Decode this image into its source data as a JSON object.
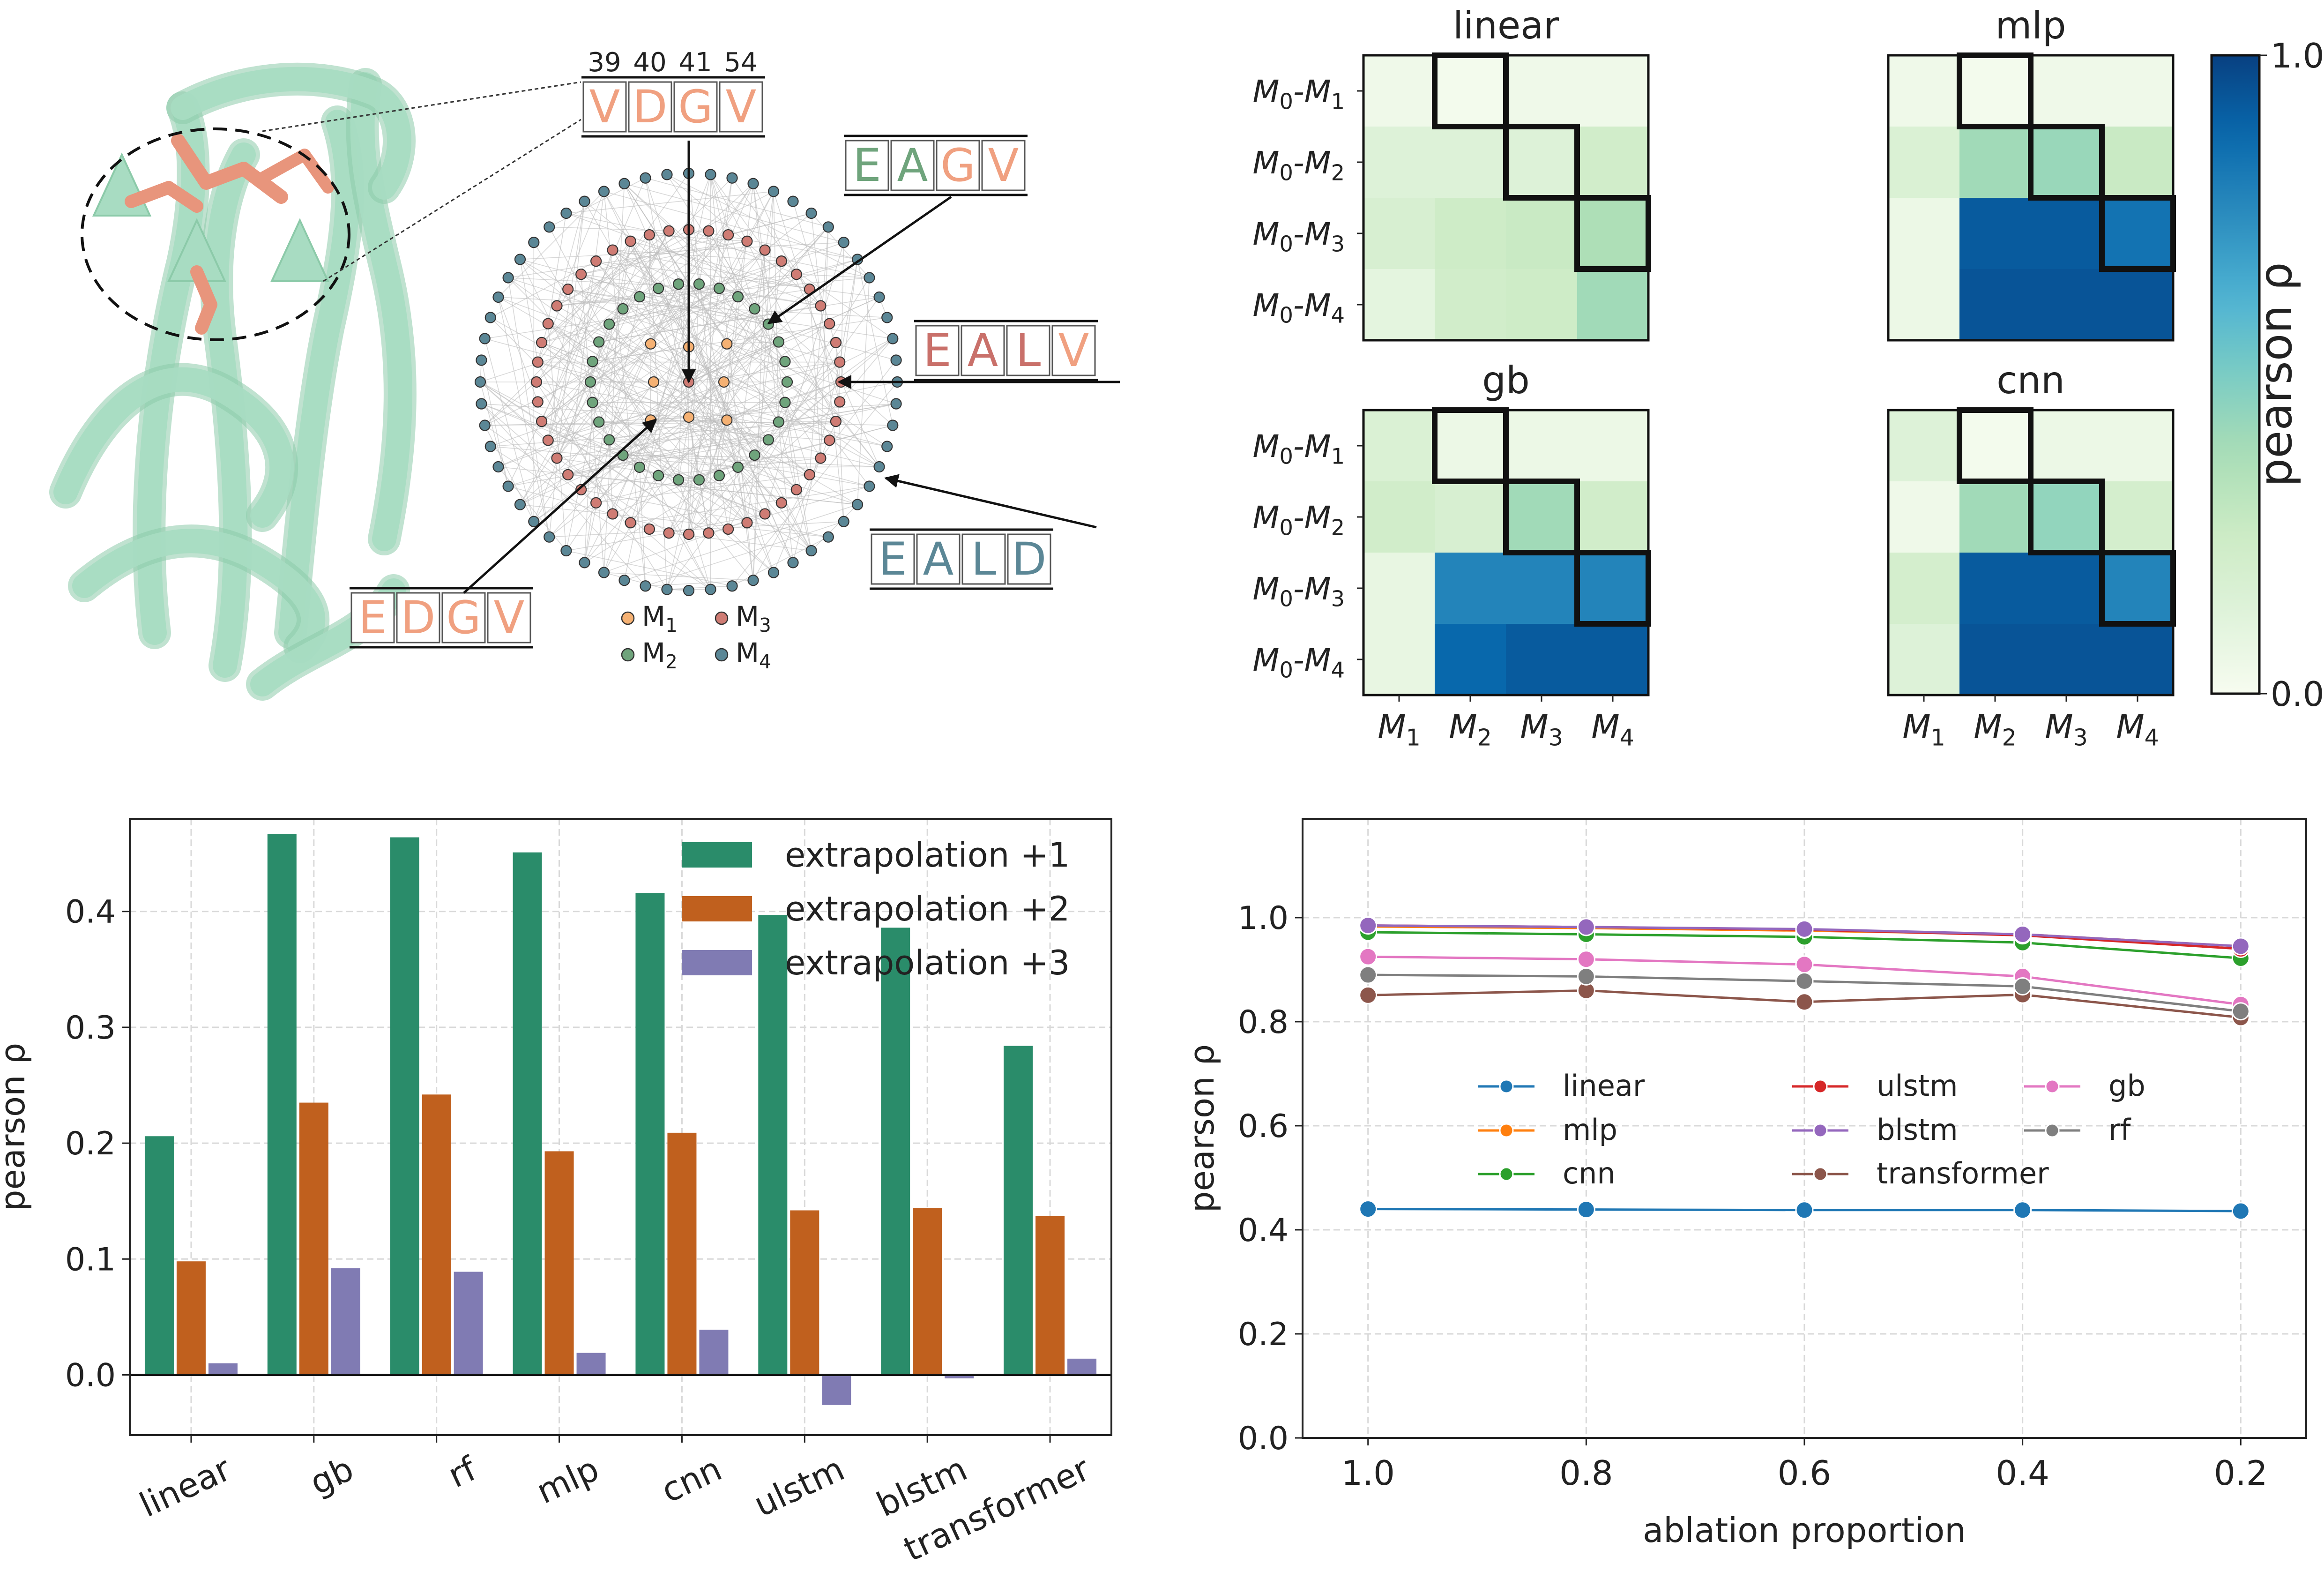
{
  "colors": {
    "protein": "#a8dcc2",
    "protein_dark": "#8ccaa9",
    "sidechain": "#e8957c",
    "m1": "#f5b173",
    "m2": "#6fa47c",
    "m3": "#cf7c74",
    "m4": "#5b8796",
    "text_orange": "#f0a080",
    "text_green": "#6fa47c",
    "text_red": "#c9706a",
    "text_blue": "#5b8796",
    "bar1": "#2a8c6a",
    "bar2": "#c0601e",
    "bar3": "#807bb3",
    "line_linear": "#1f77b4",
    "line_mlp": "#ff7f0e",
    "line_cnn": "#2ca02c",
    "line_ulstm": "#d62728",
    "line_blstm": "#9467bd",
    "line_transformer": "#8c564b",
    "line_gb": "#e377c2",
    "line_rf": "#7f7f7f"
  },
  "panel_a": {
    "positions": [
      "39",
      "40",
      "41",
      "54"
    ],
    "sequences": [
      {
        "letters": [
          "V",
          "D",
          "G",
          "V"
        ],
        "colors": [
          "text_orange",
          "text_orange",
          "text_orange",
          "text_orange"
        ]
      },
      {
        "letters": [
          "E",
          "A",
          "G",
          "V"
        ],
        "colors": [
          "text_green",
          "text_green",
          "text_orange",
          "text_orange"
        ]
      },
      {
        "letters": [
          "E",
          "A",
          "L",
          "V"
        ],
        "colors": [
          "text_red",
          "text_red",
          "text_red",
          "text_orange"
        ]
      },
      {
        "letters": [
          "E",
          "A",
          "L",
          "D"
        ],
        "colors": [
          "text_blue",
          "text_blue",
          "text_blue",
          "text_blue"
        ]
      },
      {
        "letters": [
          "E",
          "D",
          "G",
          "V"
        ],
        "colors": [
          "text_orange",
          "text_orange",
          "text_orange",
          "text_orange"
        ]
      }
    ],
    "legend": [
      {
        "label": "M",
        "sub": "1",
        "color": "m1"
      },
      {
        "label": "M",
        "sub": "3",
        "color": "m3"
      },
      {
        "label": "M",
        "sub": "2",
        "color": "m2"
      },
      {
        "label": "M",
        "sub": "4",
        "color": "m4"
      }
    ]
  },
  "chart_data": [
    {
      "type": "heatmap",
      "panels": [
        {
          "title": "linear",
          "values": [
            [
              0.04,
              0.02,
              0.04,
              0.04
            ],
            [
              0.14,
              0.14,
              0.14,
              0.22
            ],
            [
              0.18,
              0.24,
              0.26,
              0.36
            ],
            [
              0.1,
              0.22,
              0.24,
              0.4
            ]
          ]
        },
        {
          "title": "mlp",
          "values": [
            [
              0.04,
              0.02,
              0.04,
              0.04
            ],
            [
              0.16,
              0.4,
              0.42,
              0.26
            ],
            [
              0.06,
              0.92,
              0.92,
              0.84
            ],
            [
              0.06,
              0.94,
              0.94,
              0.94
            ]
          ]
        },
        {
          "title": "gb",
          "values": [
            [
              0.16,
              0.06,
              0.06,
              0.06
            ],
            [
              0.22,
              0.18,
              0.4,
              0.22
            ],
            [
              0.08,
              0.78,
              0.78,
              0.78
            ],
            [
              0.08,
              0.88,
              0.92,
              0.92
            ]
          ]
        },
        {
          "title": "cnn",
          "values": [
            [
              0.14,
              0.02,
              0.06,
              0.06
            ],
            [
              0.04,
              0.4,
              0.44,
              0.2
            ],
            [
              0.2,
              0.92,
              0.92,
              0.78
            ],
            [
              0.14,
              0.94,
              0.94,
              0.94
            ]
          ]
        }
      ],
      "row_labels": [
        {
          "a": "M",
          "as": "0",
          "b": "M",
          "bs": "1"
        },
        {
          "a": "M",
          "as": "0",
          "b": "M",
          "bs": "2"
        },
        {
          "a": "M",
          "as": "0",
          "b": "M",
          "bs": "3"
        },
        {
          "a": "M",
          "as": "0",
          "b": "M",
          "bs": "4"
        }
      ],
      "col_labels": [
        {
          "a": "M",
          "as": "1"
        },
        {
          "a": "M",
          "as": "2"
        },
        {
          "a": "M",
          "as": "3"
        },
        {
          "a": "M",
          "as": "4"
        }
      ],
      "colorbar": {
        "label": "pearson ρ",
        "min": 0.0,
        "max": 1.0,
        "min_label": "0.0",
        "max_label": "1.0"
      }
    },
    {
      "type": "bar",
      "categories": [
        "linear",
        "gb",
        "rf",
        "mlp",
        "cnn",
        "ulstm",
        "blstm",
        "transformer"
      ],
      "series": [
        {
          "name": "extrapolation +1",
          "color": "bar1",
          "values": [
            0.206,
            0.467,
            0.464,
            0.451,
            0.416,
            0.397,
            0.386,
            0.284
          ]
        },
        {
          "name": "extrapolation +2",
          "color": "bar2",
          "values": [
            0.098,
            0.235,
            0.242,
            0.193,
            0.209,
            0.142,
            0.144,
            0.137
          ]
        },
        {
          "name": "extrapolation +3",
          "color": "bar3",
          "values": [
            0.01,
            0.092,
            0.089,
            0.019,
            0.039,
            -0.026,
            -0.003,
            0.014
          ]
        }
      ],
      "ylabel": "pearson ρ",
      "ylim": [
        -0.052,
        0.48
      ],
      "yticks": [
        0.0,
        0.1,
        0.2,
        0.3,
        0.4
      ],
      "ytick_labels": [
        "0.0",
        "0.1",
        "0.2",
        "0.3",
        "0.4"
      ],
      "grid": true,
      "legend_position": "top-right"
    },
    {
      "type": "line",
      "x": [
        1.0,
        0.8,
        0.6,
        0.4,
        0.2
      ],
      "xtick_labels": [
        "1.0",
        "0.8",
        "0.6",
        "0.4",
        "0.2"
      ],
      "series": [
        {
          "name": "linear",
          "color": "line_linear",
          "values": [
            0.44,
            0.439,
            0.438,
            0.438,
            0.436
          ]
        },
        {
          "name": "mlp",
          "color": "line_mlp",
          "values": [
            0.983,
            0.98,
            0.975,
            0.968,
            0.945
          ]
        },
        {
          "name": "cnn",
          "color": "line_cnn",
          "values": [
            0.972,
            0.968,
            0.963,
            0.952,
            0.922
          ]
        },
        {
          "name": "ulstm",
          "color": "line_ulstm",
          "values": [
            0.985,
            0.982,
            0.977,
            0.966,
            0.94
          ]
        },
        {
          "name": "blstm",
          "color": "line_blstm",
          "values": [
            0.985,
            0.982,
            0.978,
            0.968,
            0.945
          ]
        },
        {
          "name": "transformer",
          "color": "line_transformer",
          "values": [
            0.851,
            0.86,
            0.838,
            0.852,
            0.808
          ]
        },
        {
          "name": "gb",
          "color": "line_gb",
          "values": [
            0.925,
            0.92,
            0.91,
            0.887,
            0.833
          ]
        },
        {
          "name": "rf",
          "color": "line_rf",
          "values": [
            0.89,
            0.887,
            0.878,
            0.868,
            0.82
          ]
        }
      ],
      "xlabel": "ablation proportion",
      "ylabel": "pearson ρ",
      "xlim": [
        1.06,
        0.14
      ],
      "ylim": [
        0.0,
        1.19
      ],
      "yticks": [
        0.0,
        0.2,
        0.4,
        0.6,
        0.8,
        1.0
      ],
      "ytick_labels": [
        "0.0",
        "0.2",
        "0.4",
        "0.6",
        "0.8",
        "1.0"
      ],
      "grid": true,
      "legend_position": "center"
    }
  ]
}
